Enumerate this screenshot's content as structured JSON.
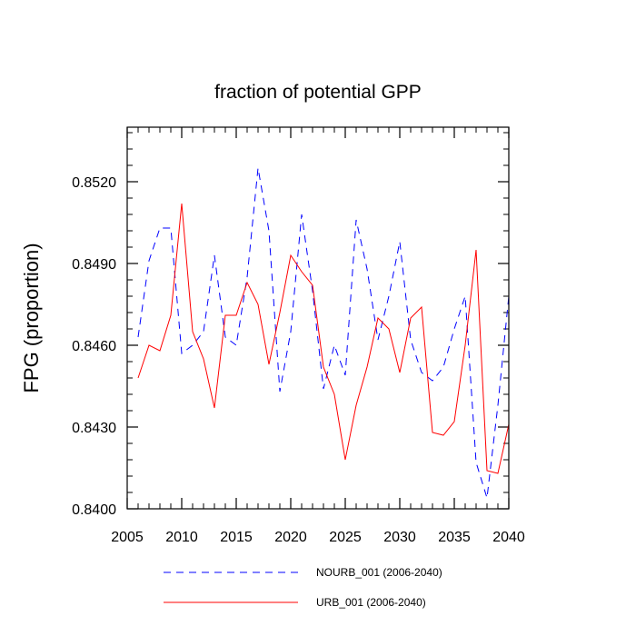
{
  "chart_data": {
    "type": "line",
    "title": "fraction of potential GPP",
    "xlabel": "",
    "ylabel": "FPG  (proportion)",
    "xlim": [
      2005,
      2040
    ],
    "ylim": [
      0.84,
      0.854
    ],
    "x_ticks": [
      "2005",
      "2010",
      "2015",
      "2020",
      "2025",
      "2030",
      "2035",
      "2040"
    ],
    "x_tick_values": [
      2005,
      2010,
      2015,
      2020,
      2025,
      2030,
      2035,
      2040
    ],
    "y_ticks": [
      "0.8400",
      "0.8430",
      "0.8460",
      "0.8490",
      "0.8520"
    ],
    "y_tick_values": [
      0.84,
      0.843,
      0.846,
      0.849,
      0.852
    ],
    "x": [
      2006,
      2007,
      2008,
      2009,
      2010,
      2011,
      2012,
      2013,
      2014,
      2015,
      2016,
      2017,
      2018,
      2019,
      2020,
      2021,
      2022,
      2023,
      2024,
      2025,
      2026,
      2027,
      2028,
      2029,
      2030,
      2031,
      2032,
      2033,
      2034,
      2035,
      2036,
      2037,
      2038,
      2039,
      2040
    ],
    "series": [
      {
        "name": "NOURB_001 (2006-2040)",
        "color": "#0000ff",
        "dash": "dashed",
        "values": [
          0.8463,
          0.8491,
          0.8503,
          0.8503,
          0.8457,
          0.846,
          0.8465,
          0.8493,
          0.8463,
          0.846,
          0.8485,
          0.8525,
          0.8502,
          0.8443,
          0.8465,
          0.8508,
          0.848,
          0.8444,
          0.846,
          0.8449,
          0.8506,
          0.8488,
          0.8462,
          0.8478,
          0.8498,
          0.8462,
          0.845,
          0.8447,
          0.8452,
          0.8466,
          0.8478,
          0.8417,
          0.8404,
          0.8438,
          0.8478
        ]
      },
      {
        "name": "URB_001 (2006-2040)",
        "color": "#ff0000",
        "dash": "solid",
        "values": [
          0.8448,
          0.846,
          0.8458,
          0.8471,
          0.8512,
          0.8465,
          0.8455,
          0.8437,
          0.8471,
          0.8471,
          0.8483,
          0.8475,
          0.8453,
          0.8472,
          0.8493,
          0.8487,
          0.8482,
          0.8452,
          0.8442,
          0.8418,
          0.8438,
          0.8452,
          0.847,
          0.8466,
          0.845,
          0.847,
          0.8474,
          0.8428,
          0.8427,
          0.8432,
          0.846,
          0.8495,
          0.8414,
          0.8413,
          0.8431
        ]
      }
    ],
    "legend_position": "bottom"
  }
}
